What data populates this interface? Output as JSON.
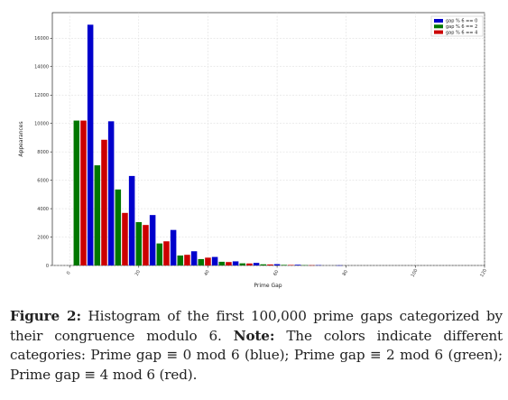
{
  "chart_data": {
    "type": "bar",
    "xlabel": "Prime Gap",
    "ylabel": "Appearances",
    "xlim": [
      -5,
      120
    ],
    "ylim": [
      0,
      17800
    ],
    "xticks": [
      "0",
      "20",
      "40",
      "60",
      "80",
      "100",
      "120"
    ],
    "yticks": [
      "0",
      "2000",
      "4000",
      "6000",
      "8000",
      "10000",
      "12000",
      "14000",
      "16000"
    ],
    "grid": true,
    "legend_position": "top-right",
    "series": [
      {
        "name": "gap % 6 == 0",
        "color": "#0000cc",
        "x": [
          6,
          12,
          18,
          24,
          30,
          36,
          42,
          48,
          54,
          60,
          66,
          72,
          78
        ],
        "values": [
          16950,
          10150,
          6300,
          3550,
          2500,
          1000,
          600,
          290,
          180,
          90,
          50,
          20,
          10
        ]
      },
      {
        "name": "gap % 6 == 2",
        "color": "#007700",
        "x": [
          2,
          8,
          14,
          20,
          26,
          32,
          38,
          44,
          50,
          56,
          62,
          68
        ],
        "values": [
          10200,
          7050,
          5350,
          3050,
          1550,
          700,
          450,
          260,
          150,
          80,
          40,
          20
        ]
      },
      {
        "name": "gap % 6 == 4",
        "color": "#cc0000",
        "x": [
          4,
          10,
          16,
          22,
          28,
          34,
          40,
          46,
          52,
          58,
          64,
          70
        ],
        "values": [
          10200,
          8850,
          3700,
          2850,
          1700,
          750,
          550,
          240,
          140,
          70,
          35,
          15
        ]
      }
    ]
  },
  "caption": {
    "label": "Figure 2:",
    "text1": " Histogram of the first 100,000 prime gaps categorized by their congruence modulo 6. ",
    "note_label": "Note:",
    "text2": " The colors indicate different categories: Prime gap ≡ 0 mod 6 (blue); Prime gap ≡ 2 mod 6 (green); Prime gap ≡ 4 mod 6 (red)."
  }
}
